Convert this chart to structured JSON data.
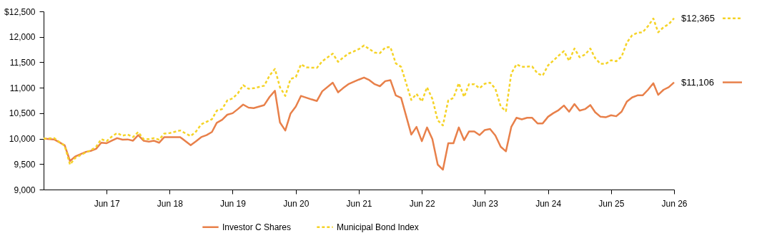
{
  "chart_data": {
    "type": "line",
    "xlim": [
      "2016-06",
      "2026-06"
    ],
    "xticks": [
      {
        "value": "2017-06",
        "label": "Jun 17"
      },
      {
        "value": "2018-06",
        "label": "Jun 18"
      },
      {
        "value": "2019-06",
        "label": "Jun 19"
      },
      {
        "value": "2020-06",
        "label": "Jun 20"
      },
      {
        "value": "2021-06",
        "label": "Jun 21"
      },
      {
        "value": "2022-06",
        "label": "Jun 22"
      },
      {
        "value": "2023-06",
        "label": "Jun 23"
      },
      {
        "value": "2024-06",
        "label": "Jun 24"
      },
      {
        "value": "2025-06",
        "label": "Jun 25"
      },
      {
        "value": "2026-06",
        "label": "Jun 26"
      }
    ],
    "ylim": [
      9000,
      12500
    ],
    "yticks": [
      {
        "value": 9000,
        "label": "9,000"
      },
      {
        "value": 9500,
        "label": "9,500"
      },
      {
        "value": 10000,
        "label": "10,000"
      },
      {
        "value": 10500,
        "label": "10,500"
      },
      {
        "value": 11000,
        "label": "11,000"
      },
      {
        "value": 11500,
        "label": "11,500"
      },
      {
        "value": 12000,
        "label": "12,000"
      },
      {
        "value": 12500,
        "label": "$12,500"
      }
    ],
    "grid": false,
    "legend": "bottom",
    "marker": "none",
    "annotations": [
      {
        "text": "$12,365",
        "x": "2026-06",
        "y": 12365
      },
      {
        "text": "$11,106",
        "x": "2026-06",
        "y": 11106
      }
    ],
    "series": [
      {
        "name": "Investor C Shares",
        "color": "#e8804a",
        "line_style": "solid",
        "x": [
          "2016-06",
          "2016-08",
          "2016-10",
          "2016-11",
          "2016-12",
          "2017-02",
          "2017-03",
          "2017-04",
          "2017-05",
          "2017-06",
          "2017-07",
          "2017-08",
          "2017-09",
          "2017-10",
          "2017-11",
          "2017-12",
          "2018-01",
          "2018-02",
          "2018-03",
          "2018-04",
          "2018-05",
          "2018-06",
          "2018-08",
          "2018-10",
          "2018-11",
          "2018-12",
          "2019-01",
          "2019-02",
          "2019-03",
          "2019-04",
          "2019-05",
          "2019-06",
          "2019-07",
          "2019-08",
          "2019-09",
          "2019-10",
          "2019-12",
          "2020-01",
          "2020-02",
          "2020-03",
          "2020-04",
          "2020-05",
          "2020-06",
          "2020-07",
          "2020-09",
          "2020-10",
          "2020-11",
          "2021-01",
          "2021-02",
          "2021-03",
          "2021-04",
          "2021-06",
          "2021-07",
          "2021-08",
          "2021-09",
          "2021-10",
          "2021-11",
          "2021-12",
          "2022-01",
          "2022-02",
          "2022-04",
          "2022-05",
          "2022-06",
          "2022-07",
          "2022-08",
          "2022-09",
          "2022-10",
          "2022-11",
          "2022-12",
          "2023-01",
          "2023-02",
          "2023-03",
          "2023-04",
          "2023-05",
          "2023-06",
          "2023-07",
          "2023-08",
          "2023-09",
          "2023-10",
          "2023-11",
          "2023-12",
          "2024-01",
          "2024-02",
          "2024-03",
          "2024-04",
          "2024-05",
          "2024-06",
          "2024-07",
          "2024-08",
          "2024-09",
          "2024-10",
          "2024-11",
          "2024-12",
          "2025-01",
          "2025-02",
          "2025-03",
          "2025-04",
          "2025-05",
          "2025-06",
          "2025-07",
          "2025-08",
          "2025-09",
          "2025-10",
          "2025-11",
          "2025-12",
          "2026-01",
          "2026-02",
          "2026-03",
          "2026-04",
          "2026-05",
          "2026-06"
        ],
        "values": [
          10000,
          9985,
          9870,
          9560,
          9650,
          9740,
          9760,
          9800,
          9920,
          9910,
          9960,
          10010,
          9980,
          9985,
          9960,
          10070,
          9960,
          9940,
          9960,
          9920,
          10030,
          10030,
          10030,
          9870,
          9950,
          10030,
          10070,
          10130,
          10310,
          10370,
          10470,
          10500,
          10580,
          10670,
          10610,
          10600,
          10660,
          10820,
          10940,
          10320,
          10160,
          10490,
          10630,
          10840,
          10770,
          10740,
          10930,
          11100,
          10910,
          10990,
          11070,
          11160,
          11200,
          11150,
          11070,
          11030,
          11130,
          11150,
          10850,
          10800,
          10080,
          10230,
          9950,
          10220,
          9990,
          9490,
          9390,
          9910,
          9910,
          10220,
          9970,
          10140,
          10140,
          10070,
          10170,
          10190,
          10060,
          9840,
          9750,
          10230,
          10410,
          10380,
          10410,
          10410,
          10300,
          10300,
          10430,
          10500,
          10560,
          10650,
          10530,
          10680,
          10550,
          10580,
          10660,
          10520,
          10430,
          10420,
          10460,
          10440,
          10530,
          10730,
          10810,
          10850,
          10850,
          10960,
          11090,
          10860,
          10960,
          11010,
          11106
        ]
      },
      {
        "name": "Municipal Bond Index",
        "color": "#f5d327",
        "line_style": "dashed",
        "x": [
          "2016-06",
          "2016-08",
          "2016-10",
          "2016-11",
          "2016-12",
          "2017-02",
          "2017-03",
          "2017-04",
          "2017-05",
          "2017-06",
          "2017-07",
          "2017-08",
          "2017-09",
          "2017-10",
          "2017-11",
          "2017-12",
          "2018-01",
          "2018-02",
          "2018-03",
          "2018-04",
          "2018-05",
          "2018-06",
          "2018-08",
          "2018-10",
          "2018-11",
          "2018-12",
          "2019-01",
          "2019-02",
          "2019-03",
          "2019-04",
          "2019-05",
          "2019-06",
          "2019-07",
          "2019-08",
          "2019-09",
          "2019-10",
          "2019-12",
          "2020-01",
          "2020-02",
          "2020-03",
          "2020-04",
          "2020-05",
          "2020-06",
          "2020-07",
          "2020-08",
          "2020-10",
          "2020-11",
          "2021-01",
          "2021-02",
          "2021-03",
          "2021-04",
          "2021-05",
          "2021-06",
          "2021-07",
          "2021-08",
          "2021-09",
          "2021-10",
          "2021-11",
          "2021-12",
          "2022-01",
          "2022-02",
          "2022-04",
          "2022-05",
          "2022-06",
          "2022-07",
          "2022-08",
          "2022-09",
          "2022-10",
          "2022-11",
          "2022-12",
          "2023-01",
          "2023-02",
          "2023-03",
          "2023-04",
          "2023-05",
          "2023-06",
          "2023-07",
          "2023-08",
          "2023-09",
          "2023-10",
          "2023-11",
          "2023-12",
          "2024-01",
          "2024-03",
          "2024-04",
          "2024-05",
          "2024-06",
          "2024-07",
          "2024-08",
          "2024-09",
          "2024-10",
          "2024-11",
          "2024-12",
          "2025-01",
          "2025-02",
          "2025-03",
          "2025-04",
          "2025-05",
          "2025-06",
          "2025-07",
          "2025-08",
          "2025-09",
          "2025-10",
          "2025-11",
          "2025-12",
          "2026-01",
          "2026-02",
          "2026-03",
          "2026-04",
          "2026-05",
          "2026-06"
        ],
        "values": [
          10000,
          10010,
          9860,
          9490,
          9620,
          9730,
          9770,
          9840,
          9990,
          9950,
          10040,
          10110,
          10060,
          10080,
          10030,
          10130,
          9990,
          9990,
          10010,
          9980,
          10100,
          10110,
          10160,
          10050,
          10140,
          10280,
          10330,
          10380,
          10550,
          10580,
          10750,
          10790,
          10890,
          11050,
          10980,
          10990,
          11040,
          11240,
          11370,
          11010,
          10840,
          11170,
          11210,
          11460,
          11400,
          11390,
          11520,
          11670,
          11510,
          11590,
          11670,
          11710,
          11760,
          11830,
          11760,
          11690,
          11680,
          11790,
          11800,
          11480,
          11410,
          10760,
          10880,
          10730,
          11010,
          10780,
          10360,
          10260,
          10750,
          10800,
          11090,
          10820,
          11070,
          11070,
          10990,
          11080,
          11100,
          10980,
          10630,
          10540,
          11280,
          11460,
          11410,
          11420,
          11280,
          11240,
          11440,
          11530,
          11630,
          11720,
          11530,
          11770,
          11600,
          11650,
          11770,
          11580,
          11470,
          11470,
          11540,
          11520,
          11610,
          11890,
          12030,
          12080,
          12090,
          12210,
          12360,
          12090,
          12190,
          12250,
          12365
        ]
      }
    ]
  }
}
